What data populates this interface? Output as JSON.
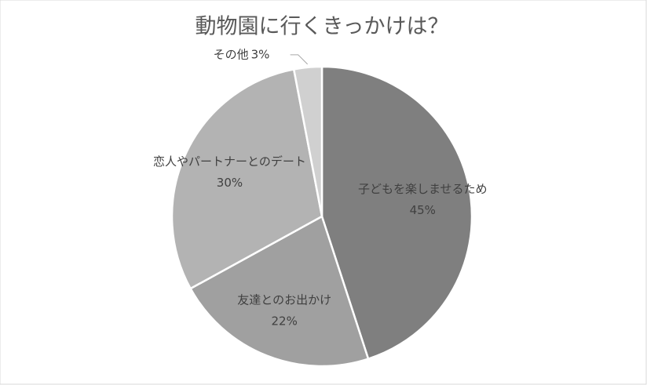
{
  "chart_data": {
    "type": "pie",
    "title": "動物園に行くきっかけは？",
    "categories": [
      "子どもを楽しませるため",
      "友達とのお出かけ",
      "恋人やパートナーとのデート",
      "その他"
    ],
    "values": [
      45,
      22,
      30,
      3
    ],
    "value_labels": [
      "45%",
      "22%",
      "30%",
      "3%"
    ],
    "colors": [
      "#7f7f7f",
      "#a0a0a0",
      "#b3b3b3",
      "#d0d0d0"
    ]
  }
}
